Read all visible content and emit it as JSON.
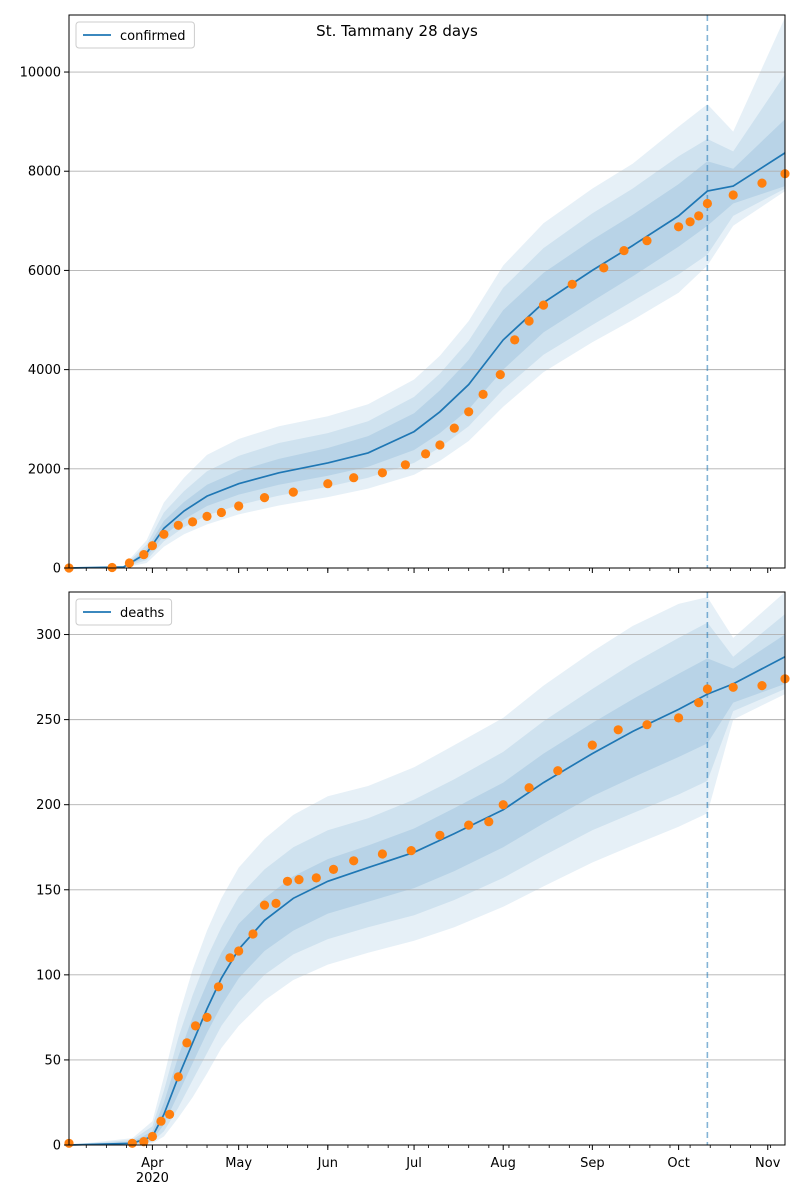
{
  "figure": {
    "title": "St. Tammany 28 days"
  },
  "colors": {
    "model": "#1f77b4",
    "observed": "#ff7f0e",
    "band": "#1f77b4",
    "grid": "#b0b0b0",
    "divider": "#1f77b4"
  },
  "x_axis": {
    "tick_labels": [
      "Apr\n2020",
      "May",
      "Jun",
      "Jul",
      "Aug",
      "Sep",
      "Oct",
      "Nov"
    ],
    "tick_dates": [
      "2020-04-01",
      "2020-05-01",
      "2020-06-01",
      "2020-07-01",
      "2020-08-01",
      "2020-09-01",
      "2020-10-01",
      "2020-11-01"
    ],
    "range": [
      "2020-03-03",
      "2020-11-07"
    ],
    "forecast_start": "2020-10-11"
  },
  "chart_data": [
    {
      "type": "line",
      "title": "St. Tammany 28 days",
      "legend": {
        "label": "confirmed",
        "position": "top-left"
      },
      "grid": "y",
      "ylim": [
        0,
        11150
      ],
      "yticks": [
        0,
        2000,
        4000,
        6000,
        8000,
        10000
      ],
      "model": {
        "x": [
          "2020-03-03",
          "2020-03-22",
          "2020-03-30",
          "2020-04-05",
          "2020-04-12",
          "2020-04-20",
          "2020-05-01",
          "2020-05-15",
          "2020-06-01",
          "2020-06-15",
          "2020-07-01",
          "2020-07-10",
          "2020-07-20",
          "2020-08-01",
          "2020-08-15",
          "2020-09-01",
          "2020-09-15",
          "2020-10-01",
          "2020-10-11",
          "2020-10-20",
          "2020-11-07"
        ],
        "median": [
          0,
          20,
          300,
          800,
          1150,
          1450,
          1700,
          1920,
          2120,
          2320,
          2750,
          3150,
          3700,
          4600,
          5350,
          6000,
          6500,
          7100,
          7600,
          7700,
          8370
        ],
        "band50": [
          [
            0,
            0
          ],
          [
            15,
            25
          ],
          [
            220,
            380
          ],
          [
            650,
            950
          ],
          [
            980,
            1330
          ],
          [
            1250,
            1680
          ],
          [
            1480,
            1960
          ],
          [
            1680,
            2200
          ],
          [
            1860,
            2420
          ],
          [
            2040,
            2660
          ],
          [
            2380,
            3120
          ],
          [
            2720,
            3580
          ],
          [
            3200,
            4200
          ],
          [
            4000,
            5200
          ],
          [
            4750,
            5950
          ],
          [
            5380,
            6620
          ],
          [
            5880,
            7120
          ],
          [
            6480,
            7740
          ],
          [
            6900,
            8200
          ],
          [
            7350,
            8050
          ],
          [
            7700,
            9050
          ]
        ],
        "band80": [
          [
            0,
            0
          ],
          [
            10,
            30
          ],
          [
            160,
            470
          ],
          [
            540,
            1120
          ],
          [
            820,
            1550
          ],
          [
            1060,
            1950
          ],
          [
            1270,
            2260
          ],
          [
            1460,
            2520
          ],
          [
            1640,
            2720
          ],
          [
            1820,
            2960
          ],
          [
            2120,
            3450
          ],
          [
            2430,
            3920
          ],
          [
            2860,
            4580
          ],
          [
            3600,
            5650
          ],
          [
            4300,
            6450
          ],
          [
            4900,
            7150
          ],
          [
            5380,
            7650
          ],
          [
            5920,
            8300
          ],
          [
            6320,
            8650
          ],
          [
            7100,
            8400
          ],
          [
            7650,
            9950
          ]
        ],
        "band95": [
          [
            0,
            0
          ],
          [
            5,
            40
          ],
          [
            100,
            560
          ],
          [
            430,
            1320
          ],
          [
            680,
            1820
          ],
          [
            880,
            2280
          ],
          [
            1080,
            2600
          ],
          [
            1260,
            2860
          ],
          [
            1430,
            3060
          ],
          [
            1600,
            3300
          ],
          [
            1880,
            3800
          ],
          [
            2160,
            4280
          ],
          [
            2560,
            4980
          ],
          [
            3250,
            6100
          ],
          [
            3950,
            6950
          ],
          [
            4550,
            7650
          ],
          [
            5000,
            8150
          ],
          [
            5550,
            8900
          ],
          [
            6100,
            9350
          ],
          [
            6900,
            8800
          ],
          [
            7600,
            11100
          ]
        ]
      },
      "observed": {
        "x": [
          "2020-03-03",
          "2020-03-18",
          "2020-03-24",
          "2020-03-29",
          "2020-04-01",
          "2020-04-05",
          "2020-04-10",
          "2020-04-15",
          "2020-04-20",
          "2020-04-25",
          "2020-05-01",
          "2020-05-10",
          "2020-05-20",
          "2020-06-01",
          "2020-06-10",
          "2020-06-20",
          "2020-06-28",
          "2020-07-05",
          "2020-07-10",
          "2020-07-15",
          "2020-07-20",
          "2020-07-25",
          "2020-07-31",
          "2020-08-05",
          "2020-08-10",
          "2020-08-15",
          "2020-08-25",
          "2020-09-05",
          "2020-09-12",
          "2020-09-20",
          "2020-10-01",
          "2020-10-05",
          "2020-10-08",
          "2020-10-11",
          "2020-10-20",
          "2020-10-30",
          "2020-11-07"
        ],
        "y": [
          0,
          10,
          100,
          270,
          450,
          680,
          860,
          930,
          1040,
          1120,
          1250,
          1420,
          1530,
          1700,
          1820,
          1920,
          2080,
          2300,
          2480,
          2820,
          3150,
          3500,
          3900,
          4600,
          4980,
          5300,
          5720,
          6050,
          6400,
          6600,
          6880,
          6980,
          7100,
          7350,
          7520,
          7760,
          7950
        ]
      }
    },
    {
      "type": "line",
      "title": "",
      "legend": {
        "label": "deaths",
        "position": "top-left"
      },
      "grid": "y",
      "ylim": [
        0,
        325
      ],
      "yticks": [
        0,
        50,
        100,
        150,
        200,
        250,
        300
      ],
      "model": {
        "x": [
          "2020-03-03",
          "2020-03-25",
          "2020-04-01",
          "2020-04-05",
          "2020-04-10",
          "2020-04-15",
          "2020-04-20",
          "2020-04-25",
          "2020-05-01",
          "2020-05-10",
          "2020-05-20",
          "2020-06-01",
          "2020-06-15",
          "2020-07-01",
          "2020-07-15",
          "2020-08-01",
          "2020-08-15",
          "2020-09-01",
          "2020-09-15",
          "2020-10-01",
          "2020-10-11",
          "2020-10-20",
          "2020-11-07"
        ],
        "median": [
          0,
          1,
          5,
          18,
          40,
          60,
          80,
          98,
          115,
          132,
          145,
          155,
          163,
          172,
          183,
          197,
          213,
          230,
          243,
          256,
          265,
          271,
          287
        ],
        "band50": [
          [
            0,
            0
          ],
          [
            0,
            2
          ],
          [
            3,
            8
          ],
          [
            12,
            25
          ],
          [
            30,
            52
          ],
          [
            48,
            75
          ],
          [
            66,
            95
          ],
          [
            82,
            113
          ],
          [
            98,
            130
          ],
          [
            114,
            145
          ],
          [
            126,
            158
          ],
          [
            136,
            168
          ],
          [
            143,
            176
          ],
          [
            151,
            186
          ],
          [
            161,
            198
          ],
          [
            175,
            213
          ],
          [
            189,
            230
          ],
          [
            205,
            248
          ],
          [
            216,
            262
          ],
          [
            228,
            277
          ],
          [
            236,
            286
          ],
          [
            260,
            280
          ],
          [
            271,
            300
          ]
        ],
        "band80": [
          [
            0,
            0
          ],
          [
            0,
            3
          ],
          [
            2,
            11
          ],
          [
            8,
            32
          ],
          [
            22,
            63
          ],
          [
            38,
            88
          ],
          [
            54,
            110
          ],
          [
            70,
            128
          ],
          [
            84,
            146
          ],
          [
            100,
            162
          ],
          [
            112,
            175
          ],
          [
            121,
            185
          ],
          [
            128,
            192
          ],
          [
            135,
            203
          ],
          [
            144,
            215
          ],
          [
            157,
            231
          ],
          [
            170,
            249
          ],
          [
            185,
            268
          ],
          [
            195,
            283
          ],
          [
            206,
            298
          ],
          [
            214,
            307
          ],
          [
            255,
            287
          ],
          [
            268,
            312
          ]
        ],
        "band95": [
          [
            0,
            0
          ],
          [
            0,
            4
          ],
          [
            1,
            14
          ],
          [
            5,
            40
          ],
          [
            16,
            75
          ],
          [
            28,
            103
          ],
          [
            42,
            126
          ],
          [
            57,
            145
          ],
          [
            70,
            163
          ],
          [
            85,
            180
          ],
          [
            97,
            194
          ],
          [
            106,
            205
          ],
          [
            113,
            211
          ],
          [
            120,
            222
          ],
          [
            128,
            235
          ],
          [
            140,
            251
          ],
          [
            152,
            270
          ],
          [
            166,
            290
          ],
          [
            176,
            305
          ],
          [
            187,
            318
          ],
          [
            195,
            322
          ],
          [
            250,
            298
          ],
          [
            265,
            325
          ]
        ]
      },
      "observed": {
        "x": [
          "2020-03-03",
          "2020-03-25",
          "2020-03-29",
          "2020-04-01",
          "2020-04-04",
          "2020-04-07",
          "2020-04-10",
          "2020-04-13",
          "2020-04-16",
          "2020-04-20",
          "2020-04-24",
          "2020-04-28",
          "2020-05-01",
          "2020-05-06",
          "2020-05-10",
          "2020-05-14",
          "2020-05-18",
          "2020-05-22",
          "2020-05-28",
          "2020-06-03",
          "2020-06-10",
          "2020-06-20",
          "2020-06-30",
          "2020-07-10",
          "2020-07-20",
          "2020-07-27",
          "2020-08-01",
          "2020-08-10",
          "2020-08-20",
          "2020-09-01",
          "2020-09-10",
          "2020-09-20",
          "2020-10-01",
          "2020-10-08",
          "2020-10-11",
          "2020-10-20",
          "2020-10-30",
          "2020-11-07"
        ],
        "y": [
          1,
          1,
          2,
          5,
          14,
          18,
          40,
          60,
          70,
          75,
          93,
          110,
          114,
          124,
          141,
          142,
          155,
          156,
          157,
          162,
          167,
          171,
          173,
          182,
          188,
          190,
          200,
          210,
          220,
          235,
          244,
          247,
          251,
          260,
          268,
          269,
          270,
          274
        ]
      }
    }
  ]
}
